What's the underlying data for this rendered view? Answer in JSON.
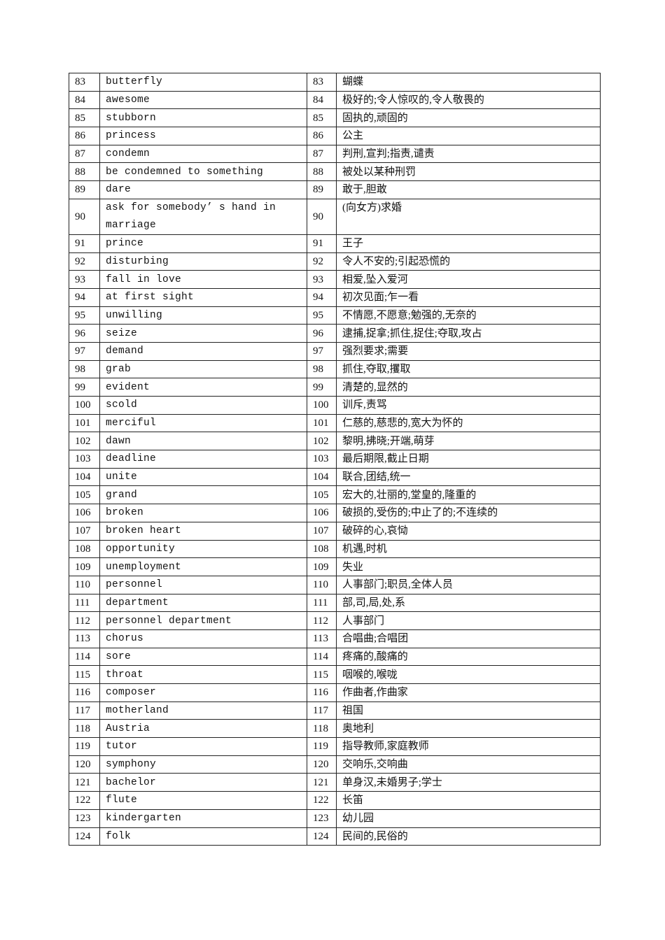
{
  "vocab_table": {
    "rows": [
      {
        "n": "83",
        "en": "butterfly",
        "zh": "蝴蝶"
      },
      {
        "n": "84",
        "en": "awesome",
        "zh": "极好的;令人惊叹的,令人敬畏的"
      },
      {
        "n": "85",
        "en": "stubborn",
        "zh": "固执的,顽固的"
      },
      {
        "n": "86",
        "en": "princess",
        "zh": "公主"
      },
      {
        "n": "87",
        "en": "condemn",
        "zh": "判刑,宣判;指责,谴责"
      },
      {
        "n": "88",
        "en": "be condemned to something",
        "zh": "被处以某种刑罚"
      },
      {
        "n": "89",
        "en": "dare",
        "zh": "敢于,胆敢"
      },
      {
        "n": "90",
        "en": "ask for somebody’ s hand in marriage",
        "zh": "(向女方)求婚"
      },
      {
        "n": "91",
        "en": "prince",
        "zh": "王子"
      },
      {
        "n": "92",
        "en": "disturbing",
        "zh": "令人不安的;引起恐慌的"
      },
      {
        "n": "93",
        "en": "fall in love",
        "zh": "相爱,坠入爱河"
      },
      {
        "n": "94",
        "en": "at first sight",
        "zh": "初次见面;乍一看"
      },
      {
        "n": "95",
        "en": "unwilling",
        "zh": "不情愿,不愿意;勉强的,无奈的"
      },
      {
        "n": "96",
        "en": "seize",
        "zh": "逮捕,捉拿;抓住,捉住;夺取,攻占"
      },
      {
        "n": "97",
        "en": "demand",
        "zh": "强烈要求;需要"
      },
      {
        "n": "98",
        "en": "grab",
        "zh": "抓住,夺取,攫取"
      },
      {
        "n": "99",
        "en": "evident",
        "zh": "清楚的,显然的"
      },
      {
        "n": "100",
        "en": "scold",
        "zh": "训斥,责骂"
      },
      {
        "n": "101",
        "en": "merciful",
        "zh": "仁慈的,慈悲的,宽大为怀的"
      },
      {
        "n": "102",
        "en": "dawn",
        "zh": "黎明,拂晓;开端,萌芽"
      },
      {
        "n": "103",
        "en": "deadline",
        "zh": "最后期限,截止日期"
      },
      {
        "n": "104",
        "en": "unite",
        "zh": "联合,团结,统一"
      },
      {
        "n": "105",
        "en": "grand",
        "zh": "宏大的,壮丽的,堂皇的,隆重的"
      },
      {
        "n": "106",
        "en": "broken",
        "zh": "破损的,受伤的;中止了的;不连续的"
      },
      {
        "n": "107",
        "en": "broken heart",
        "zh": "破碎的心,哀恸"
      },
      {
        "n": "108",
        "en": "opportunity",
        "zh": "机遇,时机"
      },
      {
        "n": "109",
        "en": "unemployment",
        "zh": "失业"
      },
      {
        "n": "110",
        "en": "personnel",
        "zh": "人事部门;职员,全体人员"
      },
      {
        "n": "111",
        "en": "department",
        "zh": "部,司,局,处,系"
      },
      {
        "n": "112",
        "en": "personnel department",
        "zh": "人事部门"
      },
      {
        "n": "113",
        "en": "chorus",
        "zh": "合唱曲;合唱团"
      },
      {
        "n": "114",
        "en": "sore",
        "zh": "疼痛的,酸痛的"
      },
      {
        "n": "115",
        "en": "throat",
        "zh": "咽喉的,喉咙"
      },
      {
        "n": "116",
        "en": "composer",
        "zh": "作曲者,作曲家"
      },
      {
        "n": "117",
        "en": "motherland",
        "zh": "祖国"
      },
      {
        "n": "118",
        "en": "Austria",
        "zh": "奥地利"
      },
      {
        "n": "119",
        "en": "tutor",
        "zh": "指导教师,家庭教师"
      },
      {
        "n": "120",
        "en": "symphony",
        "zh": "交响乐,交响曲"
      },
      {
        "n": "121",
        "en": "bachelor",
        "zh": "单身汉,未婚男子;学士"
      },
      {
        "n": "122",
        "en": "flute",
        "zh": "长笛"
      },
      {
        "n": "123",
        "en": "kindergarten",
        "zh": "幼儿园"
      },
      {
        "n": "124",
        "en": "folk",
        "zh": "民间的,民俗的"
      }
    ]
  }
}
